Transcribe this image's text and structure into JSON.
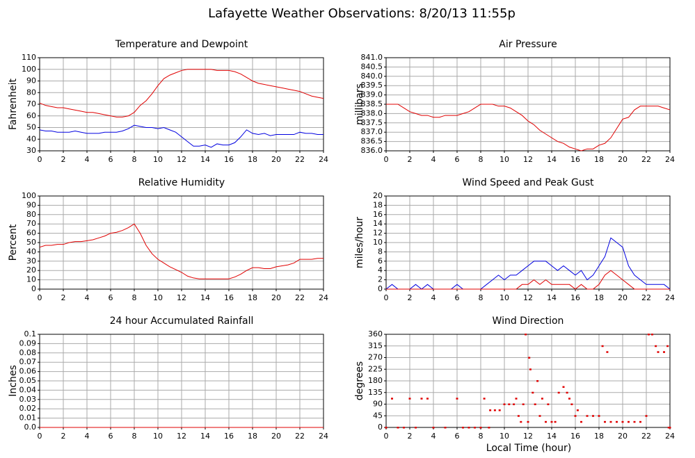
{
  "title": "Lafayette Weather Observations: 8/20/13 11:55p",
  "xlabel": "Local Time (hour)",
  "chart_data": [
    {
      "type": "line",
      "title": "Temperature and Dewpoint",
      "ylabel": "Fahrenheit",
      "grid": true,
      "x": [
        0,
        0.5,
        1,
        1.5,
        2,
        2.5,
        3,
        3.5,
        4,
        4.5,
        5,
        5.5,
        6,
        6.5,
        7,
        7.5,
        8,
        8.5,
        9,
        9.5,
        10,
        10.5,
        11,
        11.5,
        12,
        12.5,
        13,
        13.5,
        14,
        14.5,
        15,
        15.5,
        16,
        16.5,
        17,
        17.5,
        18,
        18.5,
        19,
        19.5,
        20,
        20.5,
        21,
        21.5,
        22,
        22.5,
        23,
        23.5,
        24
      ],
      "xlim": [
        0,
        24
      ],
      "xticks": [
        0,
        2,
        4,
        6,
        8,
        10,
        12,
        14,
        16,
        18,
        20,
        22,
        24
      ],
      "ylim": [
        30,
        110
      ],
      "yticks": [
        30,
        40,
        50,
        60,
        70,
        80,
        90,
        100,
        110
      ],
      "series": [
        {
          "color": "#e00000",
          "values": [
            71,
            69,
            68,
            67,
            67,
            66,
            65,
            64,
            63,
            63,
            62,
            61,
            60,
            59,
            59,
            60,
            63,
            69,
            73,
            79,
            86,
            92,
            95,
            97,
            99,
            100,
            100,
            100,
            100,
            100,
            99,
            99,
            99,
            98,
            96,
            93,
            90,
            88,
            87,
            86,
            85,
            84,
            83,
            82,
            81,
            79,
            77,
            76,
            75
          ]
        },
        {
          "color": "#0000e0",
          "values": [
            48,
            47,
            47,
            46,
            46,
            46,
            47,
            46,
            45,
            45,
            45,
            46,
            46,
            46,
            47,
            49,
            52,
            51,
            50,
            50,
            49,
            50,
            48,
            46,
            42,
            38,
            34,
            34,
            35,
            33,
            36,
            35,
            35,
            37,
            42,
            48,
            45,
            44,
            45,
            43,
            44,
            44,
            44,
            44,
            46,
            45,
            45,
            44,
            44
          ]
        }
      ]
    },
    {
      "type": "line",
      "title": "Air Pressure",
      "ylabel": "millibars",
      "grid": true,
      "x": [
        0,
        0.5,
        1,
        1.5,
        2,
        2.5,
        3,
        3.5,
        4,
        4.5,
        5,
        5.5,
        6,
        6.5,
        7,
        7.5,
        8,
        8.5,
        9,
        9.5,
        10,
        10.5,
        11,
        11.5,
        12,
        12.5,
        13,
        13.5,
        14,
        14.5,
        15,
        15.5,
        16,
        16.5,
        17,
        17.5,
        18,
        18.5,
        19,
        19.5,
        20,
        20.5,
        21,
        21.5,
        22,
        22.5,
        23,
        23.5,
        24
      ],
      "xlim": [
        0,
        24
      ],
      "xticks": [
        0,
        2,
        4,
        6,
        8,
        10,
        12,
        14,
        16,
        18,
        20,
        22,
        24
      ],
      "ylim": [
        836,
        841
      ],
      "yticks": [
        {
          "value": 836,
          "label": "836.0"
        },
        836.5,
        {
          "value": 837,
          "label": "837.0"
        },
        837.5,
        {
          "value": 838,
          "label": "838.0"
        },
        838.5,
        {
          "value": 839,
          "label": "839.0"
        },
        839.5,
        {
          "value": 840,
          "label": "840.0"
        },
        840.5,
        {
          "value": 841,
          "label": "841.0"
        }
      ],
      "series": [
        {
          "color": "#e00000",
          "values": [
            838.5,
            838.5,
            838.5,
            838.3,
            838.1,
            838.0,
            837.9,
            837.9,
            837.8,
            837.8,
            837.9,
            837.9,
            837.9,
            838.0,
            838.1,
            838.3,
            838.5,
            838.5,
            838.5,
            838.4,
            838.4,
            838.3,
            838.1,
            837.9,
            837.6,
            837.4,
            837.1,
            836.9,
            836.7,
            836.5,
            836.4,
            836.2,
            836.1,
            836.0,
            836.1,
            836.1,
            836.3,
            836.4,
            836.7,
            837.2,
            837.7,
            837.8,
            838.2,
            838.4,
            838.4,
            838.4,
            838.4,
            838.3,
            838.2
          ]
        }
      ]
    },
    {
      "type": "line",
      "title": "Relative Humidity",
      "ylabel": "Percent",
      "grid": true,
      "x": [
        0,
        0.5,
        1,
        1.5,
        2,
        2.5,
        3,
        3.5,
        4,
        4.5,
        5,
        5.5,
        6,
        6.5,
        7,
        7.5,
        8,
        8.5,
        9,
        9.5,
        10,
        10.5,
        11,
        11.5,
        12,
        12.5,
        13,
        13.5,
        14,
        14.5,
        15,
        15.5,
        16,
        16.5,
        17,
        17.5,
        18,
        18.5,
        19,
        19.5,
        20,
        20.5,
        21,
        21.5,
        22,
        22.5,
        23,
        23.5,
        24
      ],
      "xlim": [
        0,
        24
      ],
      "xticks": [
        0,
        2,
        4,
        6,
        8,
        10,
        12,
        14,
        16,
        18,
        20,
        22,
        24
      ],
      "ylim": [
        0,
        100
      ],
      "yticks": [
        0,
        10,
        20,
        30,
        40,
        50,
        60,
        70,
        80,
        90,
        100
      ],
      "series": [
        {
          "color": "#e00000",
          "values": [
            45,
            47,
            47,
            48,
            48,
            50,
            51,
            51,
            52,
            53,
            55,
            57,
            60,
            61,
            63,
            66,
            70,
            60,
            47,
            38,
            32,
            28,
            24,
            21,
            18,
            14,
            12,
            11,
            11,
            11,
            11,
            11,
            11,
            13,
            16,
            20,
            23,
            23,
            22,
            22,
            24,
            25,
            26,
            28,
            32,
            32,
            32,
            33,
            33
          ]
        }
      ]
    },
    {
      "type": "line",
      "title": "Wind Speed and Peak Gust",
      "ylabel": "miles/hour",
      "grid": true,
      "x": [
        0,
        0.5,
        1,
        1.5,
        2,
        2.5,
        3,
        3.5,
        4,
        4.5,
        5,
        5.5,
        6,
        6.5,
        7,
        7.5,
        8,
        8.5,
        9,
        9.5,
        10,
        10.5,
        11,
        11.5,
        12,
        12.5,
        13,
        13.5,
        14,
        14.5,
        15,
        15.5,
        16,
        16.5,
        17,
        17.5,
        18,
        18.5,
        19,
        19.5,
        20,
        20.5,
        21,
        21.5,
        22,
        22.5,
        23,
        23.5,
        24
      ],
      "xlim": [
        0,
        24
      ],
      "xticks": [
        0,
        2,
        4,
        6,
        8,
        10,
        12,
        14,
        16,
        18,
        20,
        22,
        24
      ],
      "ylim": [
        0,
        20
      ],
      "yticks": [
        0,
        2,
        4,
        6,
        8,
        10,
        12,
        14,
        16,
        18,
        20
      ],
      "series": [
        {
          "color": "#0000e0",
          "values": [
            0,
            1,
            0,
            0,
            0,
            1,
            0,
            1,
            0,
            0,
            0,
            0,
            1,
            0,
            0,
            0,
            0,
            1,
            2,
            3,
            2,
            3,
            3,
            4,
            5,
            6,
            6,
            6,
            5,
            4,
            5,
            4,
            3,
            4,
            2,
            3,
            5,
            7,
            11,
            10,
            9,
            5,
            3,
            2,
            1,
            1,
            1,
            1,
            0
          ]
        },
        {
          "color": "#e00000",
          "values": [
            0,
            0,
            0,
            0,
            0,
            0,
            0,
            0,
            0,
            0,
            0,
            0,
            0,
            0,
            0,
            0,
            0,
            0,
            0,
            0,
            0,
            0,
            0,
            1,
            1,
            2,
            1,
            2,
            1,
            1,
            1,
            1,
            0,
            1,
            0,
            0,
            1,
            3,
            4,
            3,
            2,
            1,
            0,
            0,
            0,
            0,
            0,
            0,
            0
          ]
        }
      ]
    },
    {
      "type": "line",
      "title": "24 hour Accumulated Rainfall",
      "ylabel": "Inches",
      "grid": true,
      "x": [
        0,
        24
      ],
      "xlim": [
        0,
        24
      ],
      "xticks": [
        0,
        2,
        4,
        6,
        8,
        10,
        12,
        14,
        16,
        18,
        20,
        22,
        24
      ],
      "ylim": [
        0,
        0.1
      ],
      "yticks": [
        {
          "value": 0,
          "label": "0.0"
        },
        0.01,
        0.02,
        0.03,
        0.04,
        0.05,
        0.06,
        0.07,
        0.08,
        0.09,
        0.1
      ],
      "series": [
        {
          "color": "#e00000",
          "values": [
            0,
            0
          ]
        }
      ]
    },
    {
      "type": "scatter",
      "title": "Wind Direction",
      "ylabel": "degrees",
      "grid": true,
      "color": "#e00000",
      "xlim": [
        0,
        24
      ],
      "xticks": [
        0,
        2,
        4,
        6,
        8,
        10,
        12,
        14,
        16,
        18,
        20,
        22,
        24
      ],
      "ylim": [
        0,
        360
      ],
      "yticks": [
        0,
        45,
        90,
        135,
        180,
        225,
        270,
        315,
        360
      ],
      "x": [
        0,
        0.5,
        1,
        1.5,
        2,
        2.5,
        3,
        3.5,
        4,
        5,
        6,
        6.5,
        7,
        7.5,
        8,
        8.3,
        8.7,
        8.8,
        9.2,
        9.6,
        10,
        10.4,
        10.8,
        11,
        11.2,
        11.4,
        11.6,
        11.8,
        12,
        12.1,
        12.2,
        12.4,
        12.6,
        12.8,
        13,
        13.2,
        13.5,
        13.7,
        14,
        14.3,
        14.6,
        15,
        15.3,
        15.5,
        15.7,
        16,
        16.2,
        16.5,
        17,
        17.5,
        18,
        18.3,
        18.5,
        18.7,
        19,
        19.5,
        20,
        20.5,
        21,
        21.5,
        22,
        22.2,
        22.5,
        22.8,
        23,
        23.5,
        23.8,
        23.9,
        24
      ],
      "values": [
        0,
        112,
        0,
        0,
        112,
        0,
        112,
        112,
        0,
        0,
        112,
        0,
        0,
        0,
        0,
        112,
        0,
        67,
        67,
        67,
        90,
        90,
        90,
        112,
        45,
        22,
        90,
        360,
        22,
        270,
        225,
        135,
        90,
        180,
        45,
        112,
        22,
        90,
        22,
        22,
        135,
        157,
        135,
        112,
        90,
        45,
        67,
        22,
        45,
        45,
        45,
        315,
        22,
        292,
        22,
        22,
        22,
        22,
        22,
        22,
        45,
        360,
        360,
        315,
        292,
        292,
        315,
        0,
        0
      ]
    }
  ]
}
